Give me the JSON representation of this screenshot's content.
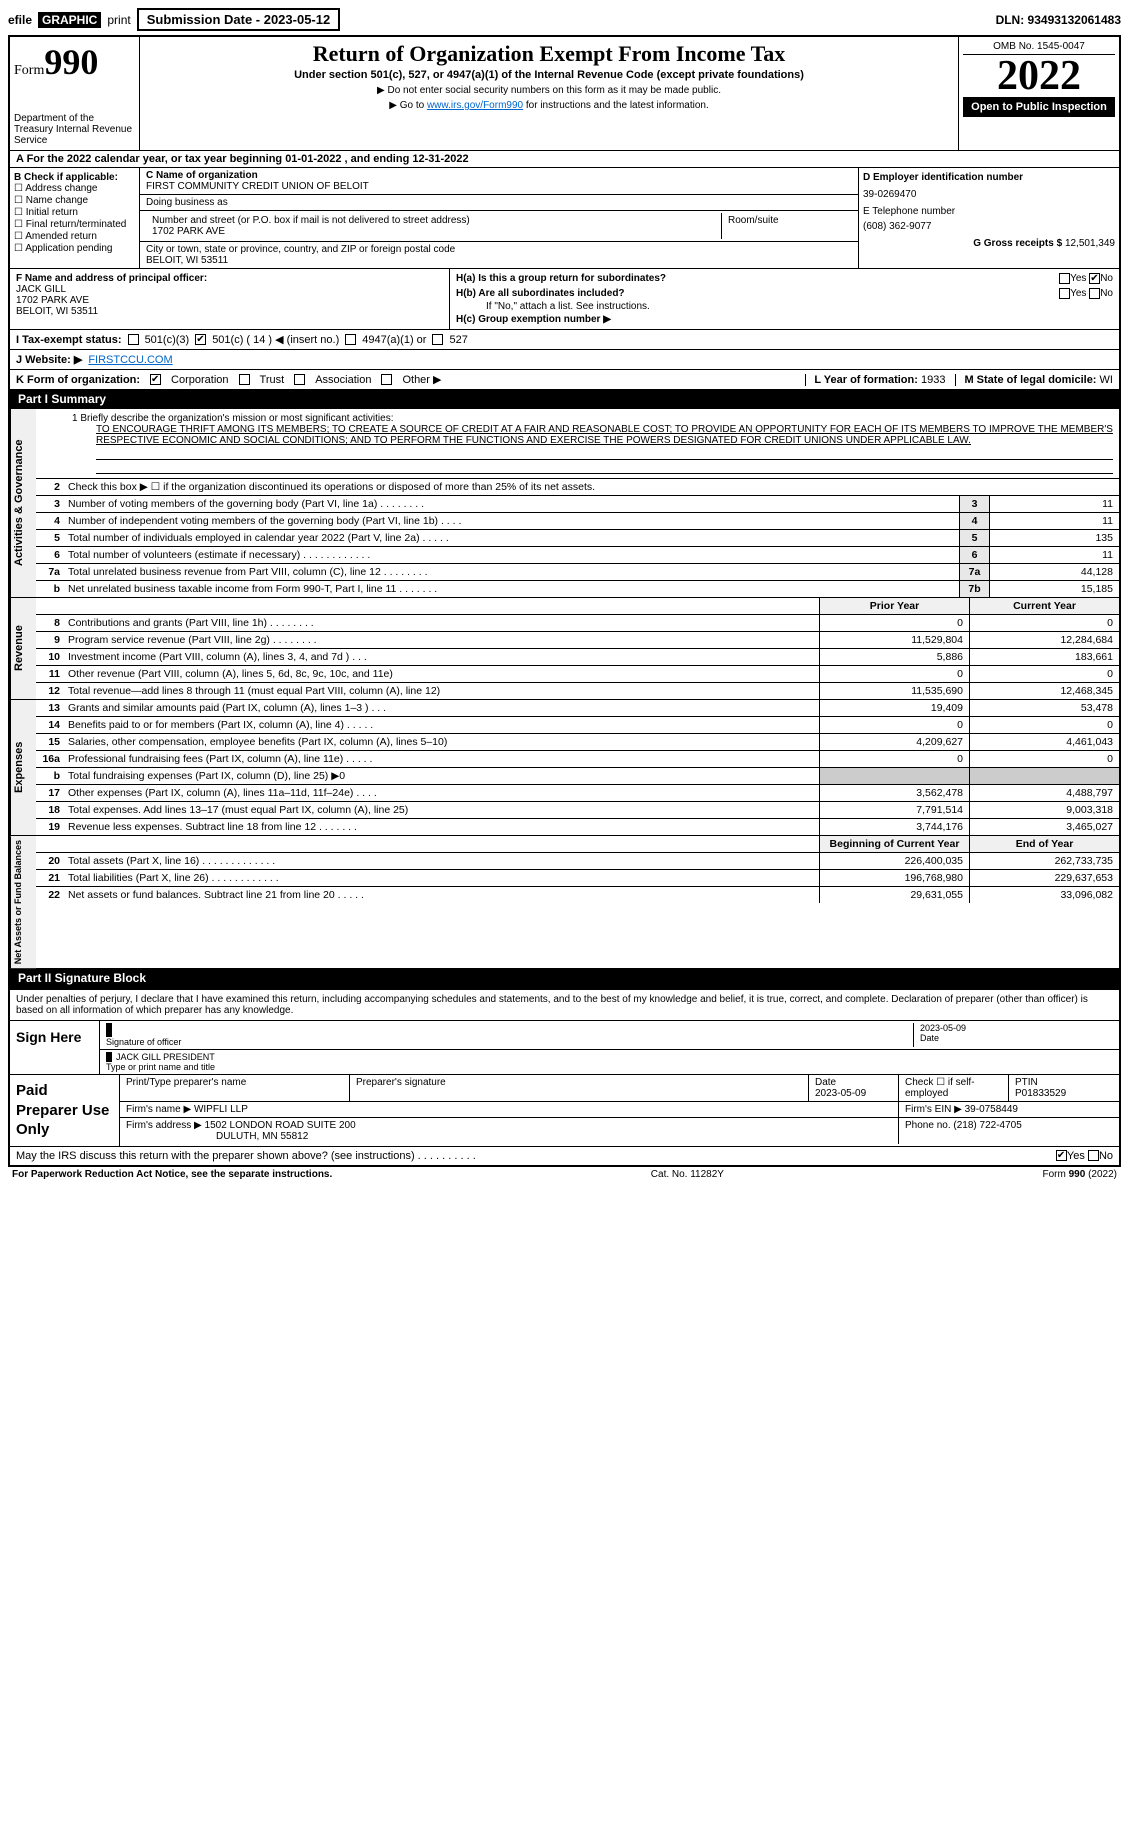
{
  "topbar": {
    "efile": "efile",
    "graphic": "GRAPHIC",
    "print": "print",
    "submission_label": "Submission Date - 2023-05-12",
    "dln": "DLN: 93493132061483"
  },
  "header": {
    "form_prefix": "Form",
    "form_number": "990",
    "title": "Return of Organization Exempt From Income Tax",
    "subtitle": "Under section 501(c), 527, or 4947(a)(1) of the Internal Revenue Code (except private foundations)",
    "note1": "▶ Do not enter social security numbers on this form as it may be made public.",
    "note2_prefix": "▶ Go to ",
    "note2_link": "www.irs.gov/Form990",
    "note2_suffix": " for instructions and the latest information.",
    "omb": "OMB No. 1545-0047",
    "year": "2022",
    "open_public": "Open to Public Inspection",
    "dept": "Department of the Treasury Internal Revenue Service"
  },
  "row_a": "A For the 2022 calendar year, or tax year beginning 01-01-2022    , and ending 12-31-2022",
  "col_b": {
    "heading": "B Check if applicable:",
    "items": [
      "Address change",
      "Name change",
      "Initial return",
      "Final return/terminated",
      "Amended return",
      "Application pending"
    ]
  },
  "col_c": {
    "name_label": "C Name of organization",
    "name": "FIRST COMMUNITY CREDIT UNION OF BELOIT",
    "dba_label": "Doing business as",
    "dba": "",
    "street_label": "Number and street (or P.O. box if mail is not delivered to street address)",
    "room_label": "Room/suite",
    "street": "1702 PARK AVE",
    "city_label": "City or town, state or province, country, and ZIP or foreign postal code",
    "city": "BELOIT, WI  53511"
  },
  "col_d": {
    "ein_label": "D Employer identification number",
    "ein": "39-0269470",
    "phone_label": "E Telephone number",
    "phone": "(608) 362-9077",
    "gross_label": "G Gross receipts $",
    "gross": "12,501,349"
  },
  "row_f": {
    "label": "F  Name and address of principal officer:",
    "name": "JACK GILL",
    "street": "1702 PARK AVE",
    "city": "BELOIT, WI  53511"
  },
  "row_h": {
    "ha_label": "H(a)  Is this a group return for subordinates?",
    "ha_yes": "Yes",
    "ha_no": "No",
    "hb_label": "H(b)  Are all subordinates included?",
    "hb_yes": "Yes",
    "hb_no": "No",
    "hb_note": "If \"No,\" attach a list. See instructions.",
    "hc_label": "H(c)  Group exemption number ▶"
  },
  "row_i": {
    "label": "I  Tax-exempt status:",
    "opt1": "501(c)(3)",
    "opt2": "501(c) ( 14 ) ◀ (insert no.)",
    "opt3": "4947(a)(1) or",
    "opt4": "527"
  },
  "row_j": {
    "label": "J  Website: ▶",
    "value": "FIRSTCCU.COM"
  },
  "row_k": {
    "label": "K Form of organization:",
    "opts": [
      "Corporation",
      "Trust",
      "Association",
      "Other ▶"
    ]
  },
  "row_l": {
    "label": "L Year of formation:",
    "value": "1933"
  },
  "row_m": {
    "label": "M State of legal domicile:",
    "value": "WI"
  },
  "part1": {
    "header": "Part I      Summary"
  },
  "mission": {
    "label": "1  Briefly describe the organization's mission or most significant activities:",
    "text": "TO ENCOURAGE THRIFT AMONG ITS MEMBERS; TO CREATE A SOURCE OF CREDIT AT A FAIR AND REASONABLE COST; TO PROVIDE AN OPPORTUNITY FOR EACH OF ITS MEMBERS TO IMPROVE THE MEMBER'S RESPECTIVE ECONOMIC AND SOCIAL CONDITIONS; AND TO PERFORM THE FUNCTIONS AND EXERCISE THE POWERS DESIGNATED FOR CREDIT UNIONS UNDER APPLICABLE LAW."
  },
  "governance": {
    "vtab": "Activities & Governance",
    "rows": [
      {
        "n": "2",
        "lbl": "Check this box ▶ ☐  if the organization discontinued its operations or disposed of more than 25% of its net assets.",
        "box": "",
        "val": ""
      },
      {
        "n": "3",
        "lbl": "Number of voting members of the governing body (Part VI, line 1a)   .    .    .    .    .    .    .    .",
        "box": "3",
        "val": "11"
      },
      {
        "n": "4",
        "lbl": "Number of independent voting members of the governing body (Part VI, line 1b)  .    .    .    .",
        "box": "4",
        "val": "11"
      },
      {
        "n": "5",
        "lbl": "Total number of individuals employed in calendar year 2022 (Part V, line 2a)  .    .    .    .    .",
        "box": "5",
        "val": "135"
      },
      {
        "n": "6",
        "lbl": "Total number of volunteers (estimate if necessary)   .    .    .    .    .    .    .    .    .    .    .    .",
        "box": "6",
        "val": "11"
      },
      {
        "n": "7a",
        "lbl": "Total unrelated business revenue from Part VIII, column (C), line 12  .    .    .    .    .    .    .    .",
        "box": "7a",
        "val": "44,128"
      },
      {
        "n": "b",
        "lbl": "Net unrelated business taxable income from Form 990-T, Part I, line 11  .    .    .    .    .    .    .",
        "box": "7b",
        "val": "15,185"
      }
    ]
  },
  "revenue": {
    "vtab": "Revenue",
    "header": {
      "prior": "Prior Year",
      "current": "Current Year"
    },
    "rows": [
      {
        "n": "8",
        "lbl": "Contributions and grants (Part VIII, line 1h)   .    .    .    .    .    .    .    .",
        "p": "0",
        "c": "0"
      },
      {
        "n": "9",
        "lbl": "Program service revenue (Part VIII, line 2g)   .    .    .    .    .    .    .    .",
        "p": "11,529,804",
        "c": "12,284,684"
      },
      {
        "n": "10",
        "lbl": "Investment income (Part VIII, column (A), lines 3, 4, and 7d )   .    .    .",
        "p": "5,886",
        "c": "183,661"
      },
      {
        "n": "11",
        "lbl": "Other revenue (Part VIII, column (A), lines 5, 6d, 8c, 9c, 10c, and 11e)",
        "p": "0",
        "c": "0"
      },
      {
        "n": "12",
        "lbl": "Total revenue—add lines 8 through 11 (must equal Part VIII, column (A), line 12)",
        "p": "11,535,690",
        "c": "12,468,345"
      }
    ]
  },
  "expenses": {
    "vtab": "Expenses",
    "rows": [
      {
        "n": "13",
        "lbl": "Grants and similar amounts paid (Part IX, column (A), lines 1–3 )   .    .    .",
        "p": "19,409",
        "c": "53,478"
      },
      {
        "n": "14",
        "lbl": "Benefits paid to or for members (Part IX, column (A), line 4)  .    .    .    .    .",
        "p": "0",
        "c": "0"
      },
      {
        "n": "15",
        "lbl": "Salaries, other compensation, employee benefits (Part IX, column (A), lines 5–10)",
        "p": "4,209,627",
        "c": "4,461,043"
      },
      {
        "n": "16a",
        "lbl": "Professional fundraising fees (Part IX, column (A), line 11e)  .    .    .    .    .",
        "p": "0",
        "c": "0"
      },
      {
        "n": "b",
        "lbl": "Total fundraising expenses (Part IX, column (D), line 25) ▶0",
        "p": "",
        "c": "",
        "shade": true
      },
      {
        "n": "17",
        "lbl": "Other expenses (Part IX, column (A), lines 11a–11d, 11f–24e)   .    .    .    .",
        "p": "3,562,478",
        "c": "4,488,797"
      },
      {
        "n": "18",
        "lbl": "Total expenses. Add lines 13–17 (must equal Part IX, column (A), line 25)",
        "p": "7,791,514",
        "c": "9,003,318"
      },
      {
        "n": "19",
        "lbl": "Revenue less expenses. Subtract line 18 from line 12   .    .    .    .    .    .    .",
        "p": "3,744,176",
        "c": "3,465,027"
      }
    ]
  },
  "netassets": {
    "vtab": "Net Assets or Fund Balances",
    "header": {
      "prior": "Beginning of Current Year",
      "current": "End of Year"
    },
    "rows": [
      {
        "n": "20",
        "lbl": "Total assets (Part X, line 16)  .    .    .    .    .    .    .    .    .    .    .    .    .",
        "p": "226,400,035",
        "c": "262,733,735"
      },
      {
        "n": "21",
        "lbl": "Total liabilities (Part X, line 26)  .    .    .    .    .    .    .    .    .    .    .    .",
        "p": "196,768,980",
        "c": "229,637,653"
      },
      {
        "n": "22",
        "lbl": "Net assets or fund balances. Subtract line 21 from line 20   .    .    .    .    .",
        "p": "29,631,055",
        "c": "33,096,082"
      }
    ]
  },
  "part2": {
    "header": "Part II      Signature Block"
  },
  "sig": {
    "declaration": "Under penalties of perjury, I declare that I have examined this return, including accompanying schedules and statements, and to the best of my knowledge and belief, it is true, correct, and complete. Declaration of preparer (other than officer) is based on all information of which preparer has any knowledge.",
    "sign_here": "Sign Here",
    "sig_officer": "Signature of officer",
    "date_label": "Date",
    "date": "2023-05-09",
    "name_title": "JACK GILL PRESIDENT",
    "name_label": "Type or print name and title"
  },
  "paid": {
    "label": "Paid Preparer Use Only",
    "h1": "Print/Type preparer's name",
    "h2": "Preparer's signature",
    "h3": "Date",
    "date": "2023-05-09",
    "h4": "Check ☐ if self-employed",
    "h5": "PTIN",
    "ptin": "P01833529",
    "firm_name_label": "Firm's name    ▶",
    "firm_name": "WIPFLI LLP",
    "firm_ein_label": "Firm's EIN ▶",
    "firm_ein": "39-0758449",
    "firm_addr_label": "Firm's address ▶",
    "firm_addr1": "1502 LONDON ROAD SUITE 200",
    "firm_addr2": "DULUTH, MN  55812",
    "phone_label": "Phone no.",
    "phone": "(218) 722-4705",
    "discuss": "May the IRS discuss this return with the preparer shown above? (see instructions)   .    .    .    .    .    .    .    .    .    .",
    "yes": "Yes",
    "no": "No"
  },
  "footer": {
    "left": "For Paperwork Reduction Act Notice, see the separate instructions.",
    "mid": "Cat. No. 11282Y",
    "right": "Form 990 (2022)"
  }
}
